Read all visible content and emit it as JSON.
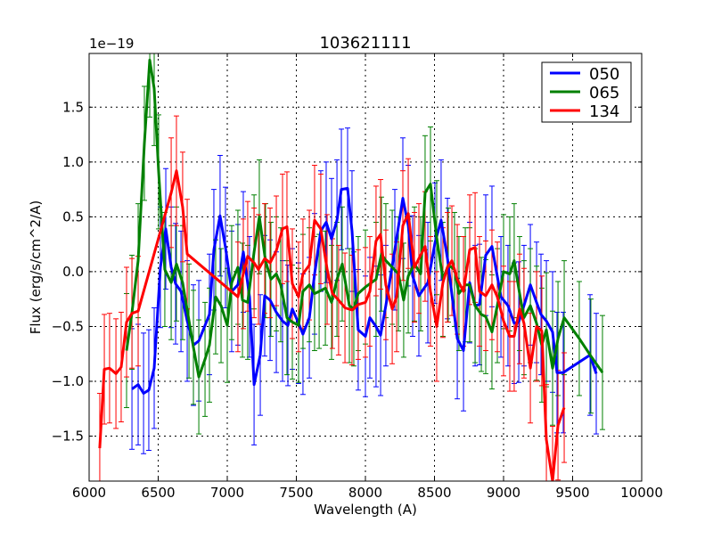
{
  "chart_data": {
    "type": "line",
    "title": "103621111",
    "xlabel": "Wavelength (A)",
    "ylabel": "Flux (erg/s/cm^2/A)",
    "y_offset_label": "1e−19",
    "xlim": [
      6000,
      10000
    ],
    "ylim": [
      -1.91,
      1.99
    ],
    "xticks": [
      6000,
      6500,
      7000,
      7500,
      8000,
      8500,
      9000,
      9500,
      10000
    ],
    "yticks": [
      -1.5,
      -1.0,
      -0.5,
      0.0,
      0.5,
      1.0,
      1.5
    ],
    "xtick_labels": [
      "6000",
      "6500",
      "7000",
      "7500",
      "8000",
      "8500",
      "9000",
      "9500",
      "10000"
    ],
    "ytick_labels": [
      "−1.5",
      "−1.0",
      "−0.5",
      "0.0",
      "0.5",
      "1.0",
      "1.5"
    ],
    "grid": true,
    "legend_position": "top-right",
    "series": [
      {
        "name": "050",
        "color": "#0000ff",
        "err": 0.55,
        "x": [
          6310,
          6355,
          6394,
          6432,
          6471,
          6516,
          6555,
          6594,
          6626,
          6665,
          6710,
          6755,
          6794,
          6871,
          6903,
          6948,
          6987,
          7032,
          7077,
          7116,
          7161,
          7194,
          7239,
          7271,
          7310,
          7355,
          7400,
          7439,
          7471,
          7516,
          7548,
          7594,
          7632,
          7677,
          7716,
          7755,
          7794,
          7826,
          7871,
          7903,
          7948,
          8000,
          8032,
          8077,
          8110,
          8148,
          8213,
          8271,
          8310,
          8342,
          8387,
          8452,
          8503,
          8548,
          8594,
          8665,
          8710,
          8755,
          8794,
          8826,
          8871,
          8916,
          8981,
          9032,
          9077,
          9110,
          9148,
          9194,
          9239,
          9271,
          9310,
          9355,
          9387,
          9432,
          9626,
          9671
        ],
        "y": [
          -1.07,
          -1.03,
          -1.11,
          -1.08,
          -0.88,
          0.04,
          0.39,
          0.04,
          -0.11,
          -0.18,
          -0.45,
          -0.67,
          -0.63,
          -0.39,
          0.2,
          0.51,
          0.22,
          -0.18,
          -0.12,
          0.18,
          -0.23,
          -1.03,
          -0.76,
          -0.22,
          -0.26,
          -0.37,
          -0.45,
          -0.49,
          -0.34,
          -0.47,
          -0.57,
          -0.42,
          -0.02,
          0.37,
          0.45,
          0.3,
          0.47,
          0.75,
          0.76,
          0.37,
          -0.53,
          -0.59,
          -0.42,
          -0.5,
          -0.58,
          -0.31,
          0.2,
          0.67,
          0.42,
          -0.04,
          -0.22,
          -0.1,
          0.26,
          0.47,
          0.12,
          -0.61,
          -0.72,
          -0.1,
          -0.31,
          -0.3,
          0.15,
          0.23,
          -0.23,
          -0.31,
          -0.47,
          -0.46,
          -0.31,
          -0.12,
          -0.28,
          -0.39,
          -0.45,
          -0.55,
          -0.92,
          -0.92,
          -0.76,
          -0.93
        ]
      },
      {
        "name": "065",
        "color": "#008000",
        "err": 0.52,
        "x": [
          6271,
          6310,
          6355,
          6400,
          6439,
          6471,
          6503,
          6548,
          6594,
          6632,
          6677,
          6723,
          6755,
          6794,
          6839,
          6871,
          6916,
          6955,
          7000,
          7032,
          7077,
          7110,
          7148,
          7194,
          7232,
          7277,
          7316,
          7355,
          7387,
          7432,
          7471,
          7516,
          7548,
          7594,
          7632,
          7665,
          7710,
          7755,
          7794,
          7832,
          7884,
          7916,
          7948,
          8000,
          8077,
          8116,
          8148,
          8194,
          8239,
          8277,
          8310,
          8355,
          8400,
          8432,
          8471,
          8516,
          8561,
          8600,
          8645,
          8677,
          8723,
          8755,
          8794,
          8839,
          8871,
          8916,
          8955,
          9000,
          9045,
          9077,
          9116,
          9148,
          9194,
          9239,
          9277,
          9310,
          9355,
          9394,
          9439,
          9548,
          9632,
          9716
        ],
        "y": [
          -0.72,
          -0.37,
          0.1,
          1.17,
          1.93,
          1.67,
          0.91,
          0.02,
          -0.1,
          0.07,
          -0.1,
          -0.45,
          -0.69,
          -0.96,
          -0.8,
          -0.67,
          -0.23,
          -0.31,
          -0.49,
          -0.1,
          0.04,
          -0.26,
          -0.28,
          0.18,
          0.5,
          0.1,
          -0.07,
          -0.02,
          -0.12,
          -0.42,
          -0.46,
          -0.49,
          -0.18,
          -0.12,
          -0.2,
          -0.18,
          -0.15,
          -0.28,
          -0.07,
          0.07,
          -0.31,
          -0.34,
          -0.2,
          -0.14,
          -0.07,
          0.16,
          0.1,
          0.04,
          -0.02,
          -0.26,
          -0.04,
          0.07,
          -0.02,
          0.72,
          0.8,
          0.31,
          -0.07,
          0.06,
          0.02,
          -0.2,
          -0.12,
          -0.12,
          -0.31,
          -0.39,
          -0.41,
          -0.55,
          -0.31,
          0.0,
          -0.02,
          0.1,
          -0.2,
          -0.42,
          -0.31,
          -0.47,
          -0.67,
          -0.53,
          -0.88,
          -0.61,
          -0.42,
          -0.61,
          -0.77,
          -0.92
        ]
      },
      {
        "name": "134",
        "color": "#ff0000",
        "err": 0.5,
        "x": [
          6077,
          6110,
          6148,
          6194,
          6232,
          6271,
          6310,
          6355,
          6594,
          6632,
          6677,
          6710,
          7077,
          7116,
          7148,
          7194,
          7226,
          7271,
          7310,
          7355,
          7400,
          7432,
          7471,
          7516,
          7548,
          7594,
          7632,
          7677,
          7723,
          7761,
          7806,
          7852,
          7903,
          7948,
          8000,
          8032,
          8077,
          8110,
          8148,
          8194,
          8226,
          8271,
          8310,
          8355,
          8387,
          8432,
          8471,
          8516,
          8561,
          8594,
          8626,
          8665,
          8710,
          8755,
          8794,
          8826,
          8871,
          8916,
          8955,
          9000,
          9045,
          9077,
          9116,
          9148,
          9194,
          9239,
          9277,
          9310,
          9355,
          9394,
          9439
        ],
        "y": [
          -1.61,
          -0.89,
          -0.88,
          -0.93,
          -0.87,
          -0.46,
          -0.38,
          -0.36,
          0.72,
          0.92,
          0.59,
          0.16,
          -0.23,
          -0.02,
          0.14,
          0.08,
          0.02,
          0.12,
          0.08,
          0.19,
          0.39,
          0.41,
          -0.11,
          -0.23,
          -0.02,
          0.06,
          0.47,
          0.39,
          0.02,
          -0.2,
          -0.26,
          -0.33,
          -0.35,
          -0.3,
          -0.28,
          -0.18,
          0.28,
          0.34,
          -0.12,
          -0.34,
          -0.23,
          0.42,
          0.53,
          0.04,
          0.12,
          0.23,
          -0.18,
          -0.5,
          -0.1,
          0.04,
          0.1,
          -0.07,
          -0.18,
          0.2,
          0.22,
          -0.18,
          -0.22,
          -0.12,
          -0.23,
          -0.45,
          -0.59,
          -0.59,
          -0.34,
          -0.47,
          -0.88,
          -0.5,
          -0.54,
          -1.53,
          -1.91,
          -1.4,
          -1.24
        ]
      }
    ]
  }
}
